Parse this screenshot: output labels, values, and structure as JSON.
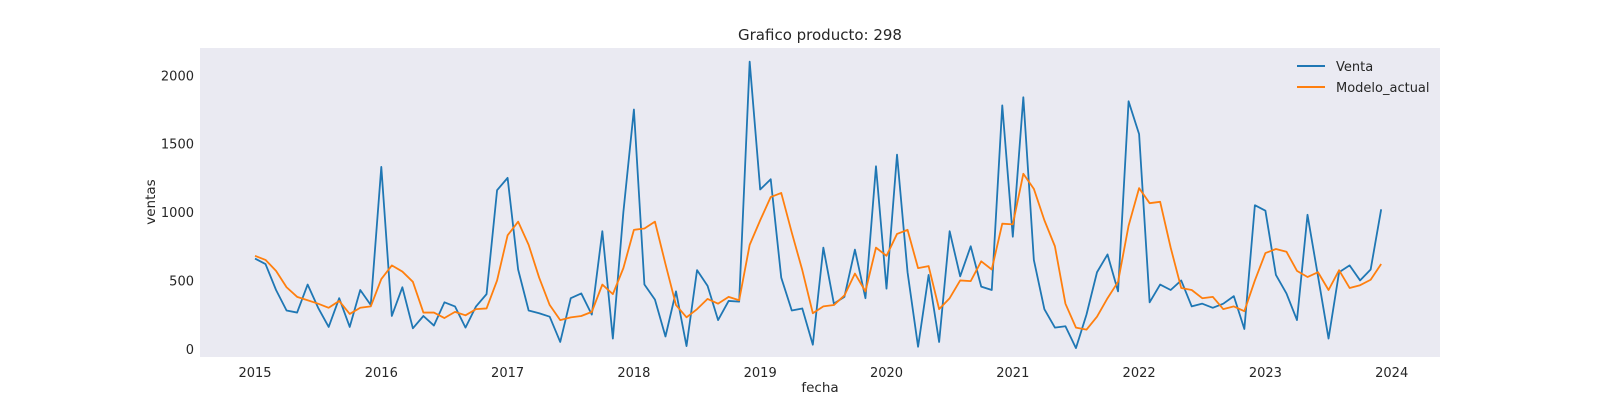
{
  "chart_data": {
    "type": "line",
    "title": "Grafico producto: 298",
    "xlabel": "fecha",
    "ylabel": "ventas",
    "x_start": "2015-01",
    "x_ticks": [
      "2015",
      "2016",
      "2017",
      "2018",
      "2019",
      "2020",
      "2021",
      "2022",
      "2023",
      "2024"
    ],
    "y_ticks": [
      0,
      500,
      1000,
      1500,
      2000
    ],
    "ylim": [
      -60,
      2200
    ],
    "grid": false,
    "legend_position": "top-right",
    "background": "#eaeaf2",
    "series": [
      {
        "name": "Venta",
        "color": "#1f77b4",
        "values": [
          660,
          620,
          430,
          280,
          265,
          470,
          300,
          160,
          370,
          160,
          430,
          320,
          1330,
          240,
          450,
          150,
          240,
          170,
          340,
          310,
          155,
          310,
          400,
          1160,
          1250,
          580,
          280,
          260,
          235,
          50,
          370,
          405,
          250,
          860,
          75,
          1000,
          1750,
          470,
          360,
          90,
          420,
          20,
          575,
          460,
          210,
          350,
          345,
          2100,
          1165,
          1240,
          520,
          280,
          295,
          30,
          740,
          330,
          380,
          725,
          370,
          1335,
          440,
          1420,
          560,
          15,
          540,
          50,
          860,
          530,
          750,
          455,
          430,
          1780,
          820,
          1840,
          650,
          290,
          155,
          165,
          5,
          250,
          560,
          690,
          420,
          1810,
          1570,
          340,
          470,
          430,
          500,
          310,
          330,
          300,
          330,
          385,
          145,
          1050,
          1010,
          540,
          405,
          210,
          980,
          530,
          75,
          560,
          610,
          500,
          580,
          1020
        ]
      },
      {
        "name": "Modelo_actual",
        "color": "#ff7f0e",
        "values": [
          680,
          650,
          570,
          450,
          380,
          355,
          330,
          300,
          350,
          255,
          300,
          310,
          510,
          610,
          565,
          490,
          265,
          265,
          225,
          270,
          245,
          290,
          295,
          500,
          830,
          930,
          760,
          520,
          320,
          210,
          230,
          240,
          270,
          470,
          400,
          590,
          870,
          880,
          930,
          620,
          320,
          230,
          290,
          365,
          330,
          380,
          355,
          760,
          940,
          1110,
          1140,
          850,
          575,
          260,
          310,
          320,
          390,
          550,
          420,
          740,
          680,
          840,
          870,
          590,
          605,
          290,
          370,
          500,
          495,
          640,
          580,
          915,
          910,
          1280,
          1170,
          940,
          750,
          330,
          155,
          140,
          235,
          370,
          490,
          900,
          1175,
          1065,
          1075,
          740,
          445,
          430,
          370,
          380,
          290,
          310,
          275,
          500,
          700,
          730,
          710,
          570,
          525,
          560,
          430,
          575,
          445,
          465,
          505,
          620
        ]
      }
    ]
  }
}
